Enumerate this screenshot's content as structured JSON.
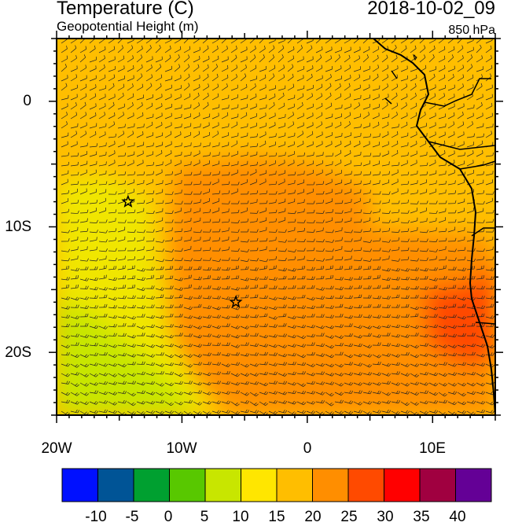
{
  "header": {
    "title_left": "Temperature (C)",
    "subtitle_left": "Geopotential Height (m)",
    "title_right": "2018-10-02_09",
    "subtitle_right": "850 hPa"
  },
  "map": {
    "lon_range": [
      -20,
      15
    ],
    "lat_range": [
      -25,
      5
    ],
    "y_tick_labels": [
      "0",
      "10S",
      "20S"
    ],
    "x_tick_labels": [
      "20W",
      "10W",
      "0",
      "10E"
    ],
    "station_markers": [
      {
        "lon": -14.3,
        "lat": -8.0
      },
      {
        "lon": -5.7,
        "lat": -16.0
      }
    ],
    "colors": {
      "t15_20": "#FFBE00",
      "t20_25": "#FF8E00",
      "t25_30": "#FF4A00",
      "t10_15": "#F0E600",
      "t5_10": "#C7E600",
      "land_line": "#000000"
    }
  },
  "colorbar": {
    "labels": [
      "-10",
      "-5",
      "0",
      "5",
      "10",
      "15",
      "20",
      "25",
      "30",
      "35",
      "40"
    ],
    "colors": [
      "#0010FF",
      "#005496",
      "#00A030",
      "#58C800",
      "#C8E600",
      "#FFE600",
      "#FFBE00",
      "#FF8E00",
      "#FF4A00",
      "#FF0000",
      "#A00040",
      "#640096"
    ]
  }
}
